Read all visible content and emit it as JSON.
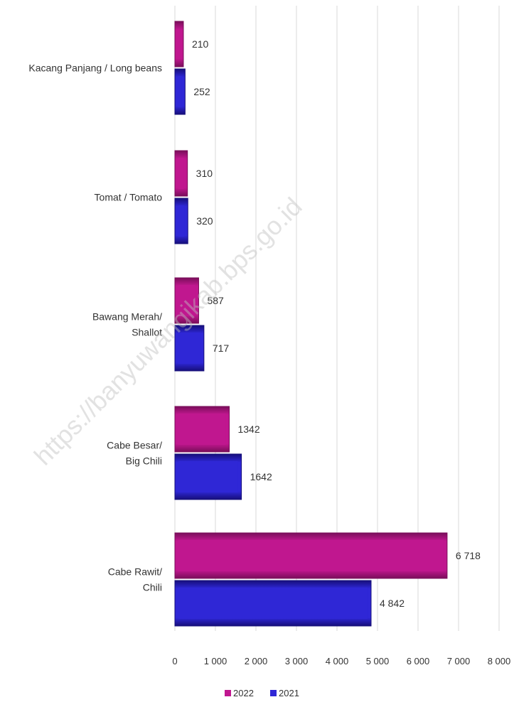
{
  "watermark": "https://banyuwangikab.bps.go.id",
  "colors": {
    "series_2022": "#c0178f",
    "series_2022_dark": "#7a0e5a",
    "series_2021": "#2f27d6",
    "series_2021_dark": "#160f7a",
    "grid": "#d9d9d9",
    "text": "#333333"
  },
  "chart_data": {
    "type": "bar",
    "orientation": "horizontal",
    "categories": [
      [
        "Kacang Panjang / Long beans"
      ],
      [
        "Tomat / Tomato"
      ],
      [
        "Bawang Merah/",
        "Shallot"
      ],
      [
        "Cabe Besar/",
        "Big Chili"
      ],
      [
        "Cabe Rawit/",
        "Chili"
      ]
    ],
    "series": [
      {
        "name": "2022",
        "values": [
          210,
          310,
          587,
          1342,
          6718
        ],
        "labels": [
          "210",
          "310",
          "587",
          "1342",
          "6 718"
        ]
      },
      {
        "name": "2021",
        "values": [
          252,
          320,
          717,
          1642,
          4842
        ],
        "labels": [
          "252",
          "320",
          "717",
          "1642",
          "4 842"
        ]
      }
    ],
    "xlim": [
      0,
      8000
    ],
    "xticks": [
      0,
      1000,
      2000,
      3000,
      4000,
      5000,
      6000,
      7000,
      8000
    ],
    "xtick_labels": [
      "0",
      "1 000",
      "2 000",
      "3 000",
      "4 000",
      "5 000",
      "6 000",
      "7 000",
      "8 000"
    ],
    "grid": true,
    "legend_position": "bottom"
  }
}
